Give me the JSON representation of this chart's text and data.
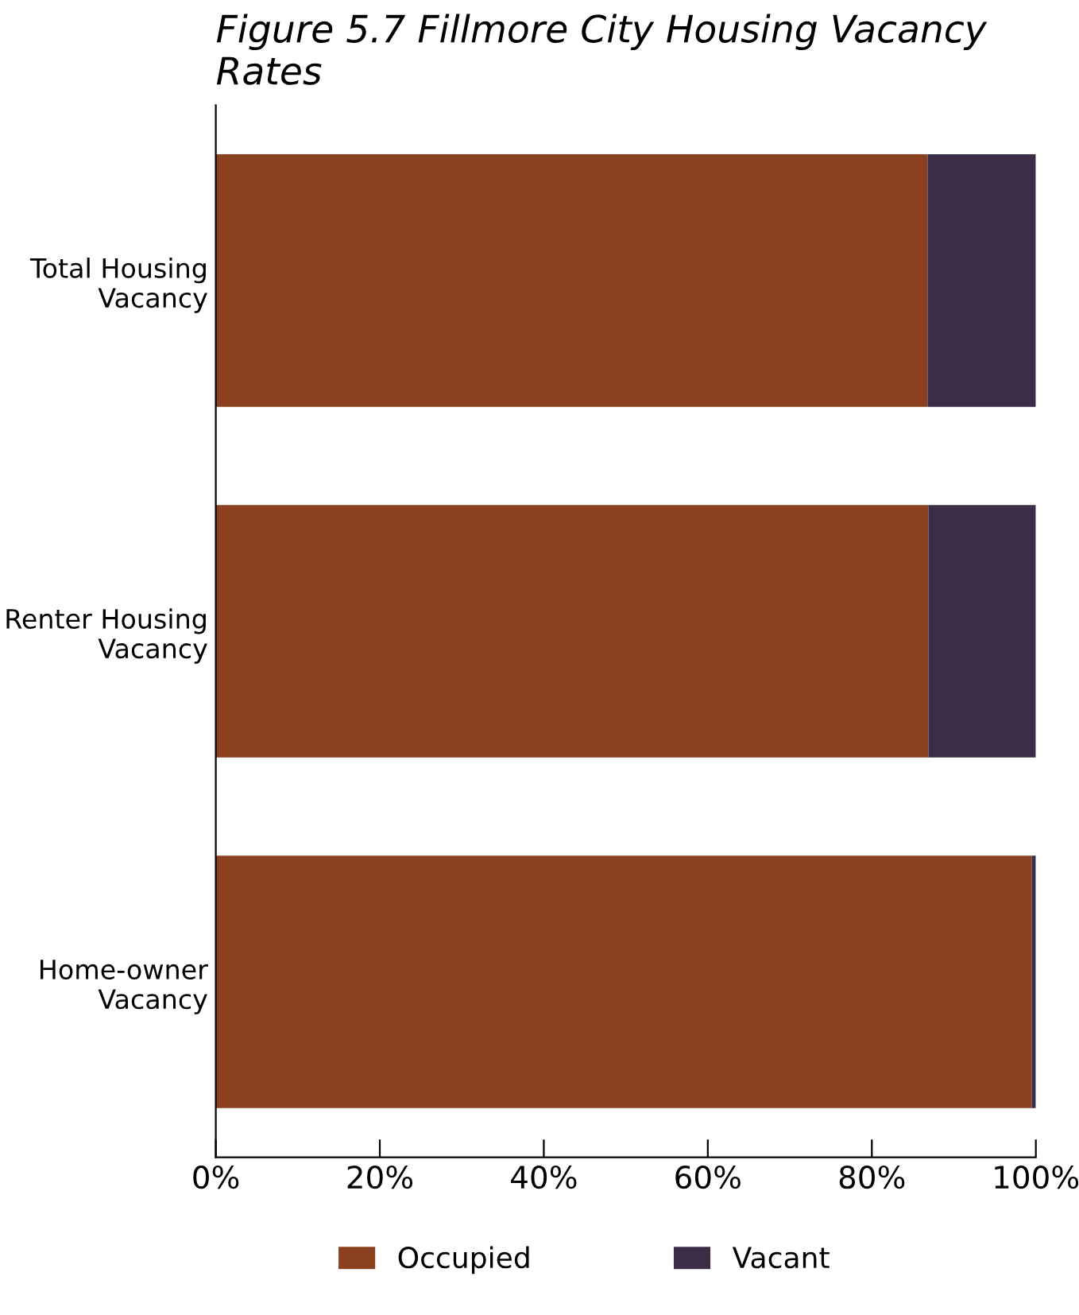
{
  "chart_data": {
    "type": "bar",
    "title": "Figure 5.7 Fillmore City Housing Vacancy Rates",
    "orientation": "horizontal",
    "stacked": true,
    "categories": [
      "Total Housing Vacancy",
      "Renter Housing Vacancy",
      "Home-owner Vacancy"
    ],
    "series": [
      {
        "name": "Occupied",
        "color": "#8b4120",
        "values": [
          86.8,
          86.9,
          99.5
        ]
      },
      {
        "name": "Vacant",
        "color": "#3b2d46",
        "values": [
          13.2,
          13.1,
          0.5
        ]
      }
    ],
    "xlim": [
      0,
      100
    ],
    "xticks": [
      {
        "value": 0,
        "label": "0%"
      },
      {
        "value": 20,
        "label": "20%"
      },
      {
        "value": 40,
        "label": "40%"
      },
      {
        "value": 60,
        "label": "60%"
      },
      {
        "value": 80,
        "label": "80%"
      },
      {
        "value": 100,
        "label": "100%"
      }
    ],
    "grid": false,
    "legend": "bottom"
  }
}
